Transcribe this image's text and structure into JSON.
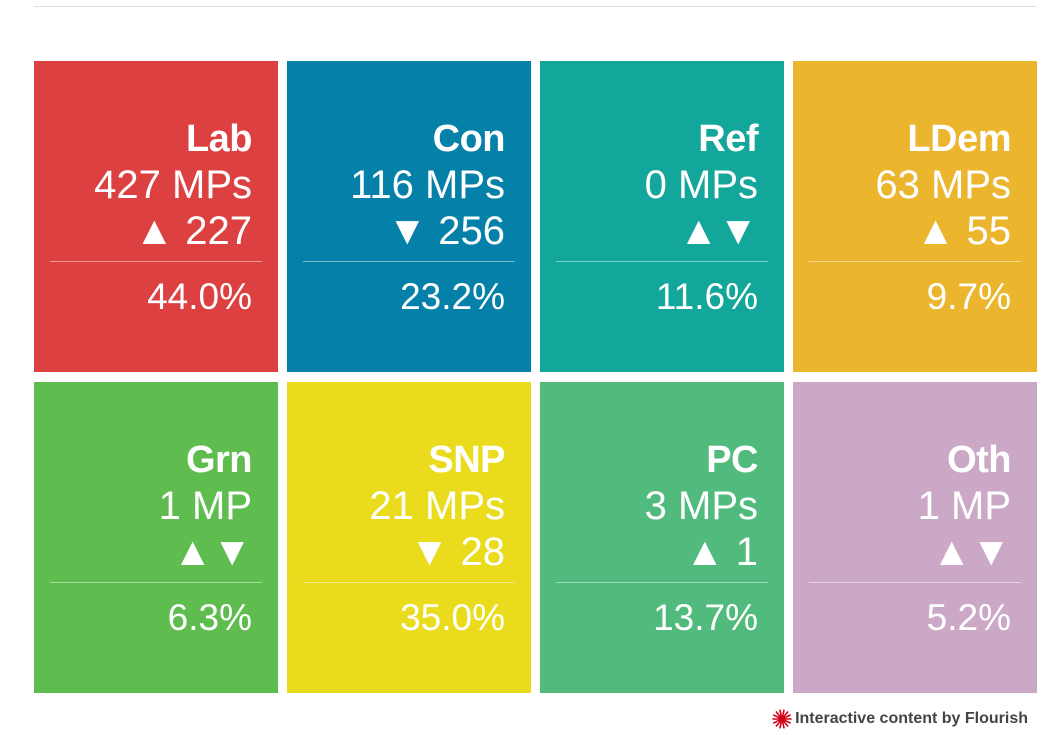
{
  "parties": [
    {
      "name": "Lab",
      "seats": "427 MPs",
      "change": "▲ 227",
      "share": "44.0%",
      "color": "#dc4040"
    },
    {
      "name": "Con",
      "seats": "116 MPs",
      "change": "▼ 256",
      "share": "23.2%",
      "color": "#0580a8"
    },
    {
      "name": "Ref",
      "seats": "0 MPs",
      "change": "▲▼",
      "share": "11.6%",
      "color": "#12a79a"
    },
    {
      "name": "LDem",
      "seats": "63 MPs",
      "change": "▲ 55",
      "share": "9.7%",
      "color": "#ebb52e"
    },
    {
      "name": "Grn",
      "seats": "1 MP",
      "change": "▲▼",
      "share": "6.3%",
      "color": "#5fbd4f"
    },
    {
      "name": "SNP",
      "seats": "21 MPs",
      "change": "▼ 28",
      "share": "35.0%",
      "color": "#eadc1c"
    },
    {
      "name": "PC",
      "seats": "3 MPs",
      "change": "▲ 1",
      "share": "13.7%",
      "color": "#50bb7d"
    },
    {
      "name": "Oth",
      "seats": "1 MP",
      "change": "▲▼",
      "share": "5.2%",
      "color": "#cca8c7"
    }
  ],
  "footer": {
    "text": "Interactive content by Flourish",
    "logo_icon": "flourish-logo-icon",
    "logo_color": "#d4001a"
  }
}
